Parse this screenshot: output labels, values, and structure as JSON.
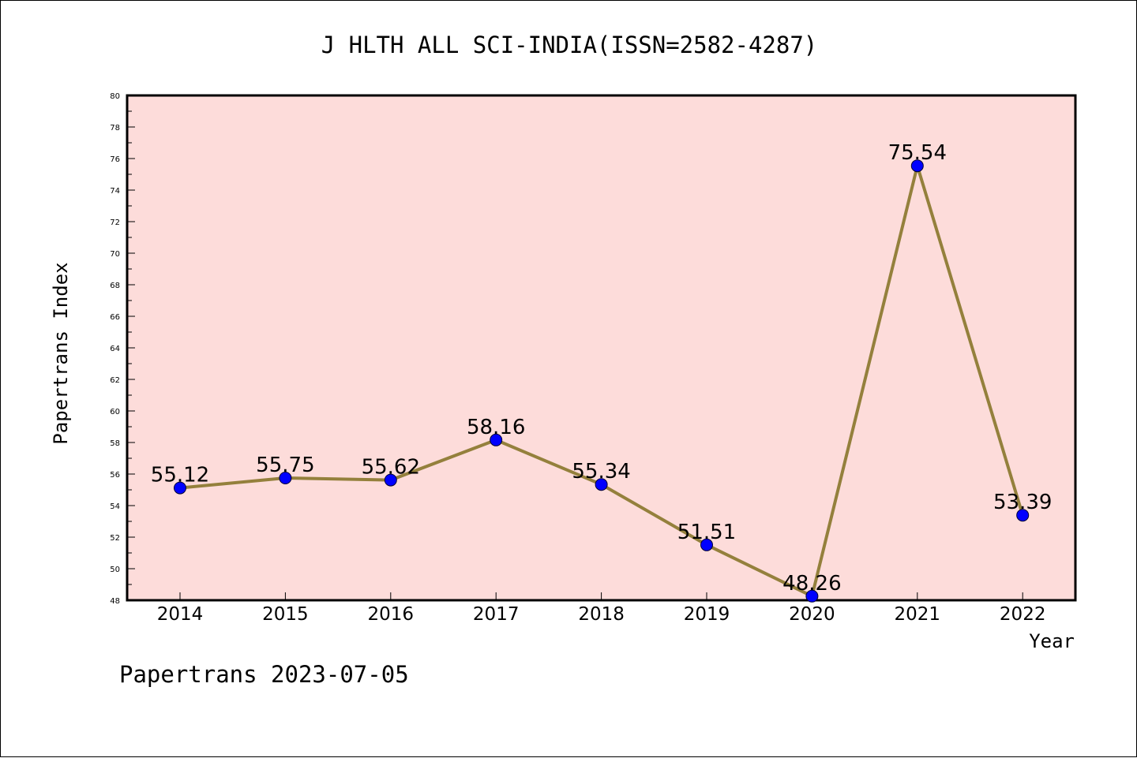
{
  "chart_data": {
    "type": "line",
    "title": "J HLTH ALL SCI-INDIA(ISSN=2582-4287)",
    "xlabel": "Year",
    "ylabel": "Papertrans Index",
    "footer": "Papertrans 2023-07-05",
    "categories": [
      "2014",
      "2015",
      "2016",
      "2017",
      "2018",
      "2019",
      "2020",
      "2021",
      "2022"
    ],
    "values": [
      55.12,
      55.75,
      55.62,
      58.16,
      55.34,
      51.51,
      48.26,
      75.54,
      53.39
    ],
    "data_labels": [
      "55.12",
      "55.75",
      "55.62",
      "58.16",
      "55.34",
      "51.51",
      "48.26",
      "75.54",
      "53.39"
    ],
    "ylim": [
      48,
      80
    ],
    "y_ticks": [
      "48",
      "50",
      "52",
      "54",
      "56",
      "58",
      "60",
      "62",
      "64",
      "66",
      "68",
      "70",
      "72",
      "74",
      "76",
      "78",
      "80"
    ],
    "grid": false,
    "legend": "none",
    "colors": {
      "plot_background": "#fddcda",
      "line": "#94803c",
      "marker": "#0000ff",
      "axis": "#000000"
    }
  }
}
